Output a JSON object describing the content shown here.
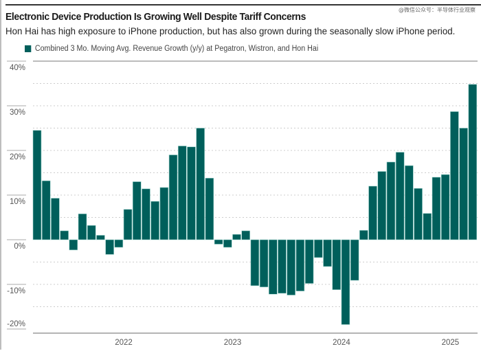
{
  "watermark": "@微信公众号：半导体行业观察",
  "title": "Electronic Device Production Is Growing Well Despite Tariff Concerns",
  "subtitle": "Hon Hai has high exposure to iPhone production, but has also grown during the seasonally slow iPhone period.",
  "colors": {
    "bar": "#005f5b",
    "bar_edge": "#9fd3cc",
    "grid": "#cccccc",
    "axis": "#888888"
  },
  "chart_data": {
    "type": "bar",
    "title": "Electronic Device Production Is Growing Well Despite Tariff Concerns",
    "subtitle": "Hon Hai has high exposure to iPhone production, but has also grown during the seasonally slow iPhone period.",
    "xlabel": "",
    "ylabel": "",
    "legend": {
      "position": "top-left",
      "entries": [
        "Combined 3 Mo. Moving Avg. Revenue Growth (y/y) at Pegatron, Wistron, and Hon Hai"
      ]
    },
    "ylim": [
      -20,
      40
    ],
    "yticks": [
      40,
      30,
      20,
      10,
      0,
      -10,
      -20
    ],
    "ytick_labels": [
      "40%",
      "30%",
      "20%",
      "10%",
      "0%",
      "-10%",
      "-20%"
    ],
    "grid": true,
    "x_tick_labels": [
      {
        "label": "2022",
        "index": 9.5
      },
      {
        "label": "2023",
        "index": 21.5
      },
      {
        "label": "2024",
        "index": 33.5
      },
      {
        "label": "2025",
        "index": 45.5
      }
    ],
    "series": [
      {
        "name": "Combined 3 Mo. Moving Avg. Revenue Growth (y/y) at Pegatron, Wistron, and Hon Hai",
        "values": [
          24.5,
          13.2,
          9.3,
          2.0,
          -2.3,
          5.8,
          3.2,
          1.0,
          -3.3,
          -1.7,
          6.8,
          13.0,
          11.4,
          8.6,
          11.7,
          19.0,
          21.0,
          20.8,
          25.0,
          13.8,
          -1.0,
          -1.7,
          1.2,
          2.0,
          -10.3,
          -10.6,
          -12.2,
          -12.0,
          -12.4,
          -11.5,
          -9.8,
          -4.0,
          -6.0,
          -11.2,
          -19.0,
          -9.1,
          2.1,
          12.0,
          15.3,
          17.4,
          19.6,
          16.6,
          11.5,
          5.9,
          14.0,
          14.6,
          28.7,
          25.0,
          34.8
        ]
      }
    ]
  }
}
